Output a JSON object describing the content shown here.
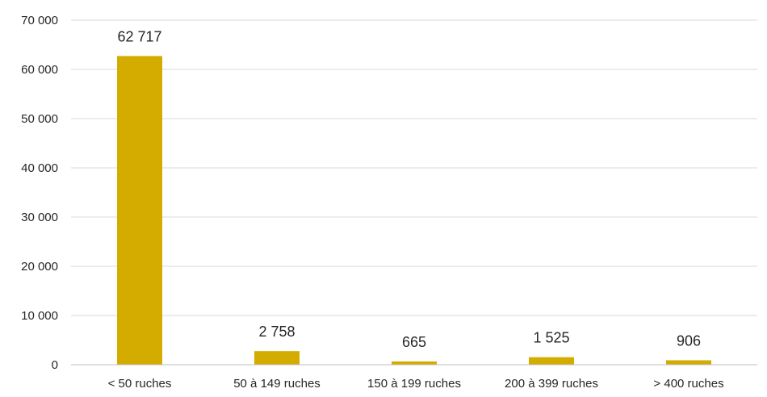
{
  "chart_data": {
    "type": "bar",
    "title": "",
    "xlabel": "",
    "ylabel": "",
    "categories": [
      "< 50 ruches",
      "50 à 149 ruches",
      "150 à 199 ruches",
      "200 à 399 ruches",
      "> 400 ruches"
    ],
    "values": [
      62717,
      2758,
      665,
      1525,
      906
    ],
    "value_labels": [
      "62 717",
      "2 758",
      "665",
      "1 525",
      "906"
    ],
    "ylim": [
      0,
      70000
    ],
    "yticks": [
      0,
      10000,
      20000,
      30000,
      40000,
      50000,
      60000,
      70000
    ],
    "ytick_labels": [
      "0",
      "10 000",
      "20 000",
      "30 000",
      "40 000",
      "50 000",
      "60 000",
      "70 000"
    ],
    "grid": true,
    "legend": "none",
    "bar_color": "#D4AC00"
  }
}
